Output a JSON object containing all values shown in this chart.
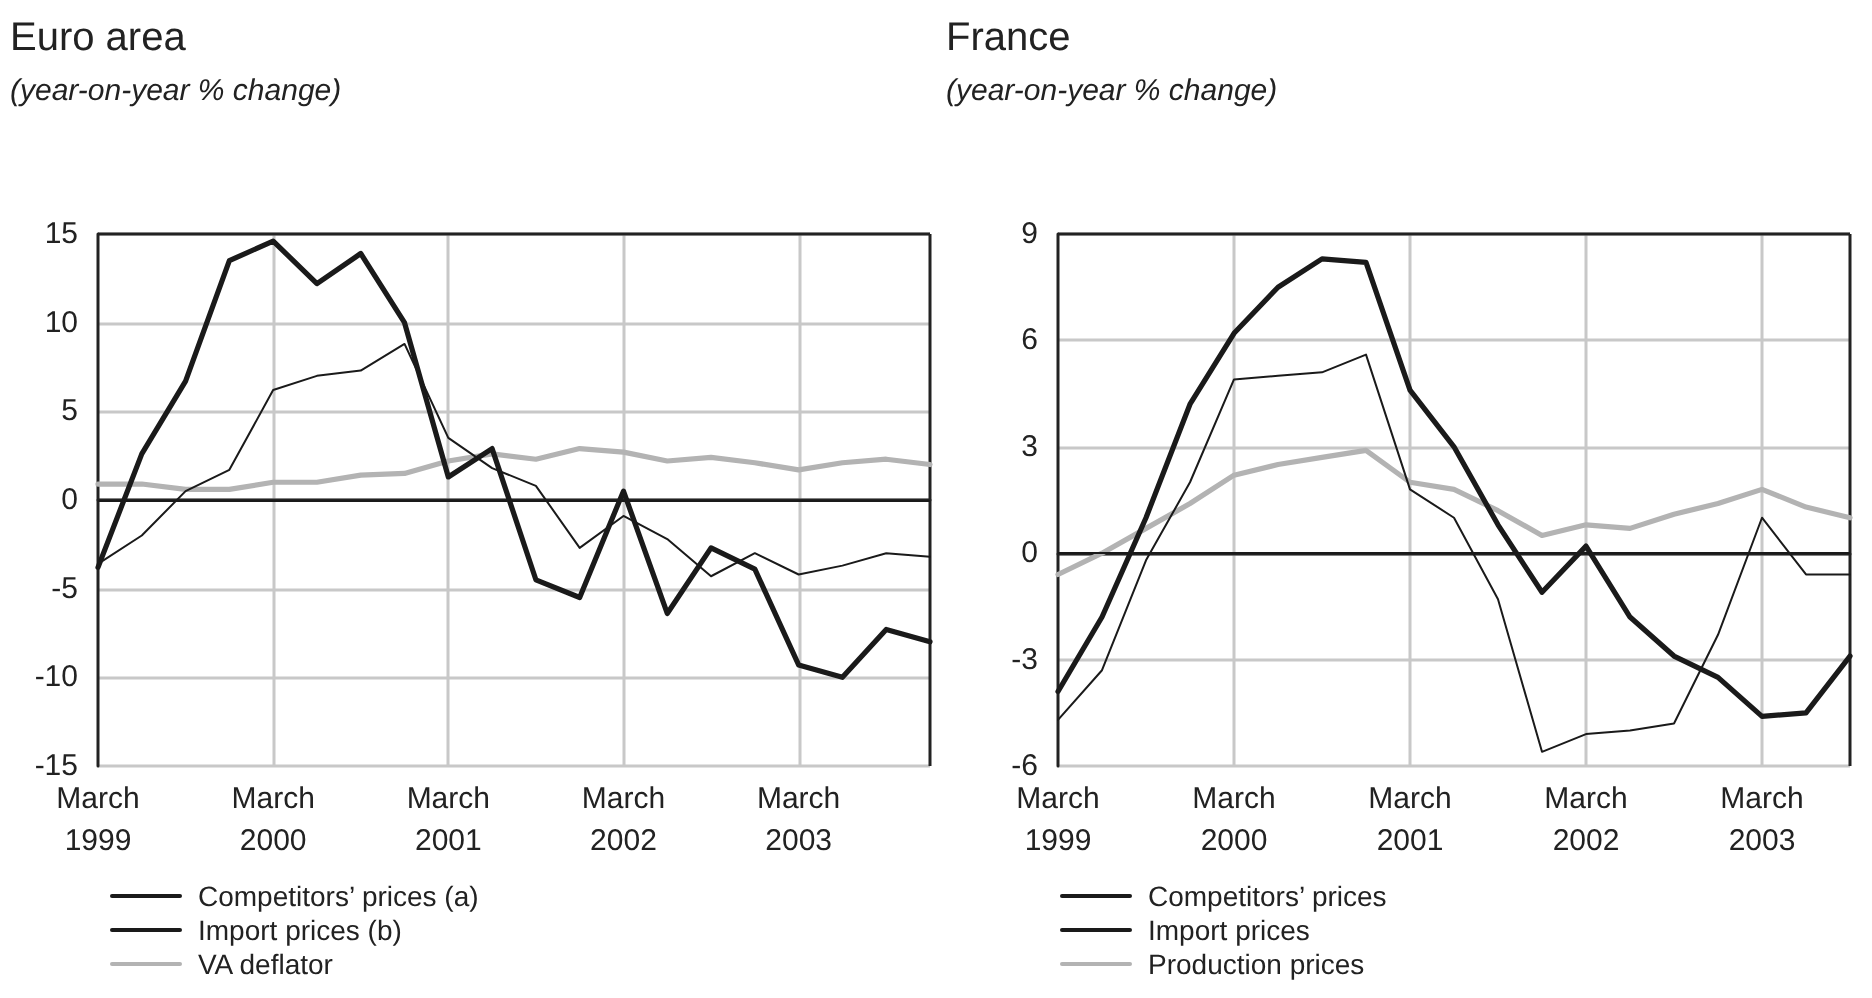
{
  "chart_data": [
    {
      "type": "line",
      "title": "Euro area",
      "subtitle": "(year-on-year % change)",
      "categories": [
        "March\n1999",
        null,
        null,
        null,
        "March\n2000",
        null,
        null,
        null,
        "March\n2001",
        null,
        null,
        null,
        "March\n2002",
        null,
        null,
        null,
        "March\n2003",
        null,
        null,
        null
      ],
      "series": [
        {
          "name": "Competitors’ prices (a)",
          "color": "#1a1a1a",
          "values": [
            -3.8,
            2.6,
            6.7,
            13.5,
            14.6,
            12.2,
            13.9,
            10.0,
            1.3,
            2.9,
            -4.5,
            -5.5,
            0.5,
            -6.4,
            -2.7,
            -3.9,
            -9.3,
            -10.0,
            -7.3,
            -8.0
          ]
        },
        {
          "name": "Import prices (b)",
          "color": "#1a1a1a",
          "values": [
            -3.6,
            -2.0,
            0.5,
            1.7,
            6.2,
            7.0,
            7.3,
            8.8,
            3.5,
            1.8,
            0.8,
            -2.7,
            -0.9,
            -2.2,
            -4.3,
            -3.0,
            -4.2,
            -3.7,
            -3.0,
            -3.2
          ]
        },
        {
          "name": "VA deflator",
          "color": "#b3b3b3",
          "values": [
            0.9,
            0.9,
            0.6,
            0.6,
            1.0,
            1.0,
            1.4,
            1.5,
            2.2,
            2.6,
            2.3,
            2.9,
            2.7,
            2.2,
            2.4,
            2.1,
            1.7,
            2.1,
            2.3,
            2.0
          ]
        }
      ],
      "ylim": [
        -15,
        15
      ],
      "yticks": [
        -15,
        -10,
        -5,
        0,
        5,
        10,
        15
      ],
      "grid": true,
      "legend": "bottom",
      "marker": "none",
      "line_style": "solid",
      "ref_lines": [
        {
          "axis": "y",
          "value": 0,
          "color": "#1a1a1a"
        }
      ]
    },
    {
      "type": "line",
      "title": "France",
      "subtitle": "(year-on-year % change)",
      "categories": [
        "March\n1999",
        null,
        null,
        null,
        "March\n2000",
        null,
        null,
        null,
        "March\n2001",
        null,
        null,
        null,
        "March\n2002",
        null,
        null,
        null,
        "March\n2003",
        null,
        null
      ],
      "series": [
        {
          "name": "Competitors’ prices",
          "color": "#1a1a1a",
          "values": [
            -3.9,
            -1.8,
            1.0,
            4.2,
            6.2,
            7.5,
            8.3,
            8.2,
            4.6,
            3.0,
            0.8,
            -1.1,
            0.2,
            -1.8,
            -2.9,
            -3.5,
            -4.6,
            -4.5,
            -2.9
          ]
        },
        {
          "name": "Import prices",
          "color": "#1a1a1a",
          "values": [
            -4.7,
            -3.3,
            -0.2,
            2.0,
            4.9,
            5.0,
            5.1,
            5.6,
            1.8,
            1.0,
            -1.3,
            -5.6,
            -5.1,
            -5.0,
            -4.8,
            -2.3,
            1.0,
            -0.6,
            -0.6
          ]
        },
        {
          "name": "Production prices",
          "color": "#b3b3b3",
          "values": [
            -0.6,
            0.0,
            0.7,
            1.4,
            2.2,
            2.5,
            2.7,
            2.9,
            2.0,
            1.8,
            1.2,
            0.5,
            0.8,
            0.7,
            1.1,
            1.4,
            1.8,
            1.3,
            1.0
          ]
        }
      ],
      "ylim": [
        -6,
        9
      ],
      "yticks": [
        -6,
        -3,
        0,
        3,
        6,
        9
      ],
      "grid": true,
      "legend": "bottom",
      "marker": "none",
      "line_style": "solid",
      "ref_lines": [
        {
          "axis": "y",
          "value": 0,
          "color": "#1a1a1a"
        }
      ]
    }
  ]
}
